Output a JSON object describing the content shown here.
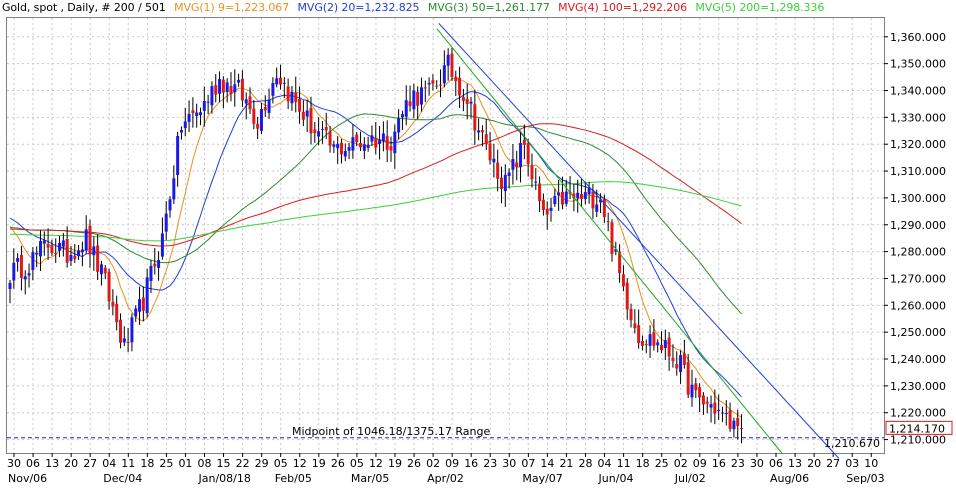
{
  "header": {
    "instrument": "Gold, spot , Daily, # 200 / 501",
    "indicators": [
      {
        "label": "MVG(1) 9=1,223.067",
        "color": "#e8901e"
      },
      {
        "label": "MVG(2) 20=1,232.825",
        "color": "#1f3fd6"
      },
      {
        "label": "MVG(3) 50=1,261.177",
        "color": "#2e8b2e"
      },
      {
        "label": "MVG(4) 100=1,292.206",
        "color": "#d62020"
      },
      {
        "label": "MVG(5) 200=1,298.336",
        "color": "#3ccf3c"
      }
    ]
  },
  "colors": {
    "up": "#1a1ae6",
    "down": "#e01818",
    "wick": "#000000",
    "grid": "#c8c8c8",
    "midline": "#2020c0",
    "trend_blue": "#1f3fd6",
    "trend_green": "#22a822"
  },
  "chart_data": {
    "type": "candlestick",
    "ylim": [
      1205,
      1367
    ],
    "y_ticks": [
      "1,210.000",
      "1,220.000",
      "1,230.000",
      "1,240.000",
      "1,250.000",
      "1,260.000",
      "1,270.000",
      "1,280.000",
      "1,290.000",
      "1,300.000",
      "1,310.000",
      "1,320.000",
      "1,330.000",
      "1,340.000",
      "1,350.000",
      "1,360.000"
    ],
    "x_ticks": [
      "30",
      "06",
      "13",
      "20",
      "27",
      "04",
      "11",
      "18",
      "25",
      "01",
      "08",
      "15",
      "22",
      "29",
      "05",
      "12",
      "19",
      "26",
      "05",
      "12",
      "19",
      "26",
      "02",
      "09",
      "16",
      "23",
      "30",
      "07",
      "14",
      "21",
      "28",
      "04",
      "11",
      "18",
      "25",
      "02",
      "09",
      "16",
      "23",
      "30",
      "06",
      "13",
      "20",
      "27",
      "03",
      "10"
    ],
    "month_labels": [
      {
        "label": "Nov/06",
        "tick": 0
      },
      {
        "label": "Dec/04",
        "tick": 5
      },
      {
        "label": "Jan/08/18",
        "tick": 10
      },
      {
        "label": "Feb/05",
        "tick": 14
      },
      {
        "label": "Mar/05",
        "tick": 18
      },
      {
        "label": "Apr/02",
        "tick": 22
      },
      {
        "label": "May/07",
        "tick": 27
      },
      {
        "label": "Jun/04",
        "tick": 31
      },
      {
        "label": "Jul/02",
        "tick": 35
      },
      {
        "label": "Aug/06",
        "tick": 40
      },
      {
        "label": "Sep/03",
        "tick": 44
      }
    ],
    "midpoint_label": "Midpoint of 1046.18/1375.17 Range",
    "midpoint_value": 1210.67,
    "midpoint_value_label": "1,210.670",
    "last_price_label": "1,214.170",
    "last_price": 1214.17,
    "weekly_closes": [
      1272,
      1276,
      1283,
      1279,
      1285,
      1268,
      1244,
      1262,
      1285,
      1327,
      1333,
      1344,
      1340,
      1329,
      1347,
      1335,
      1325,
      1318,
      1320,
      1322,
      1322,
      1338,
      1339,
      1349,
      1337,
      1318,
      1305,
      1320,
      1292,
      1300,
      1300,
      1301,
      1271,
      1249,
      1246,
      1240,
      1225,
      1222,
      1214
    ],
    "trendlines": [
      {
        "color": "blue",
        "from": [
          22.3,
          1365
        ],
        "to": [
          43.3,
          1203
        ]
      },
      {
        "color": "green",
        "from": [
          22.2,
          1363
        ],
        "to": [
          40.3,
          1205
        ]
      }
    ]
  }
}
